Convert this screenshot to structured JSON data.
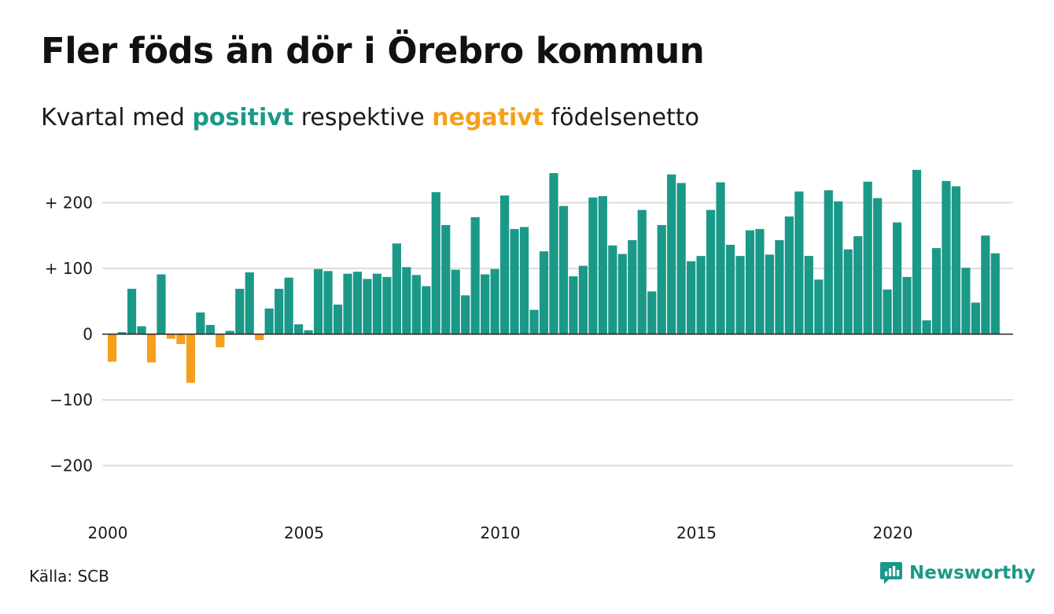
{
  "title": "Fler föds än dör i Örebro kommun",
  "subtitle": {
    "prefix": "Kvartal med",
    "positive_word": "positivt",
    "middle": "respektive",
    "negative_word": "negativt",
    "suffix": "födelsenetto"
  },
  "source": "Källa: SCB",
  "brand": {
    "name": "Newsworthy",
    "icon": "newsworthy-logo-icon"
  },
  "colors": {
    "positive": "#1a9988",
    "negative": "#f5a01c",
    "grid": "#dddddd",
    "axis": "#222222"
  },
  "chart_data": {
    "type": "bar",
    "title": "Fler föds än dör i Örebro kommun",
    "start": "2000 Q1",
    "frequency": "quarterly",
    "ylim": [
      -250,
      260
    ],
    "grid": true,
    "y_ticks": [
      {
        "value": 200,
        "label": "+ 200"
      },
      {
        "value": 100,
        "label": "+ 100"
      },
      {
        "value": 0,
        "label": "0"
      },
      {
        "value": -100,
        "label": "−100"
      },
      {
        "value": -200,
        "label": "−200"
      }
    ],
    "x_ticks": [
      {
        "value": 2000,
        "label": "2000"
      },
      {
        "value": 2005,
        "label": "2005"
      },
      {
        "value": 2010,
        "label": "2010"
      },
      {
        "value": 2015,
        "label": "2015"
      },
      {
        "value": 2020,
        "label": "2020"
      }
    ],
    "values": [
      -42,
      3,
      69,
      12,
      -43,
      91,
      -7,
      -15,
      -74,
      33,
      14,
      -20,
      5,
      69,
      94,
      -9,
      39,
      69,
      86,
      15,
      6,
      99,
      96,
      45,
      92,
      95,
      84,
      92,
      87,
      138,
      102,
      90,
      73,
      216,
      166,
      98,
      59,
      178,
      91,
      99,
      211,
      160,
      163,
      37,
      126,
      245,
      195,
      88,
      104,
      208,
      210,
      135,
      122,
      143,
      189,
      65,
      166,
      243,
      230,
      111,
      119,
      189,
      231,
      136,
      119,
      158,
      160,
      121,
      143,
      179,
      217,
      119,
      83,
      219,
      202,
      129,
      149,
      232,
      207,
      68,
      170,
      87,
      250,
      21,
      131,
      233,
      225,
      101,
      48,
      150,
      123
    ]
  }
}
